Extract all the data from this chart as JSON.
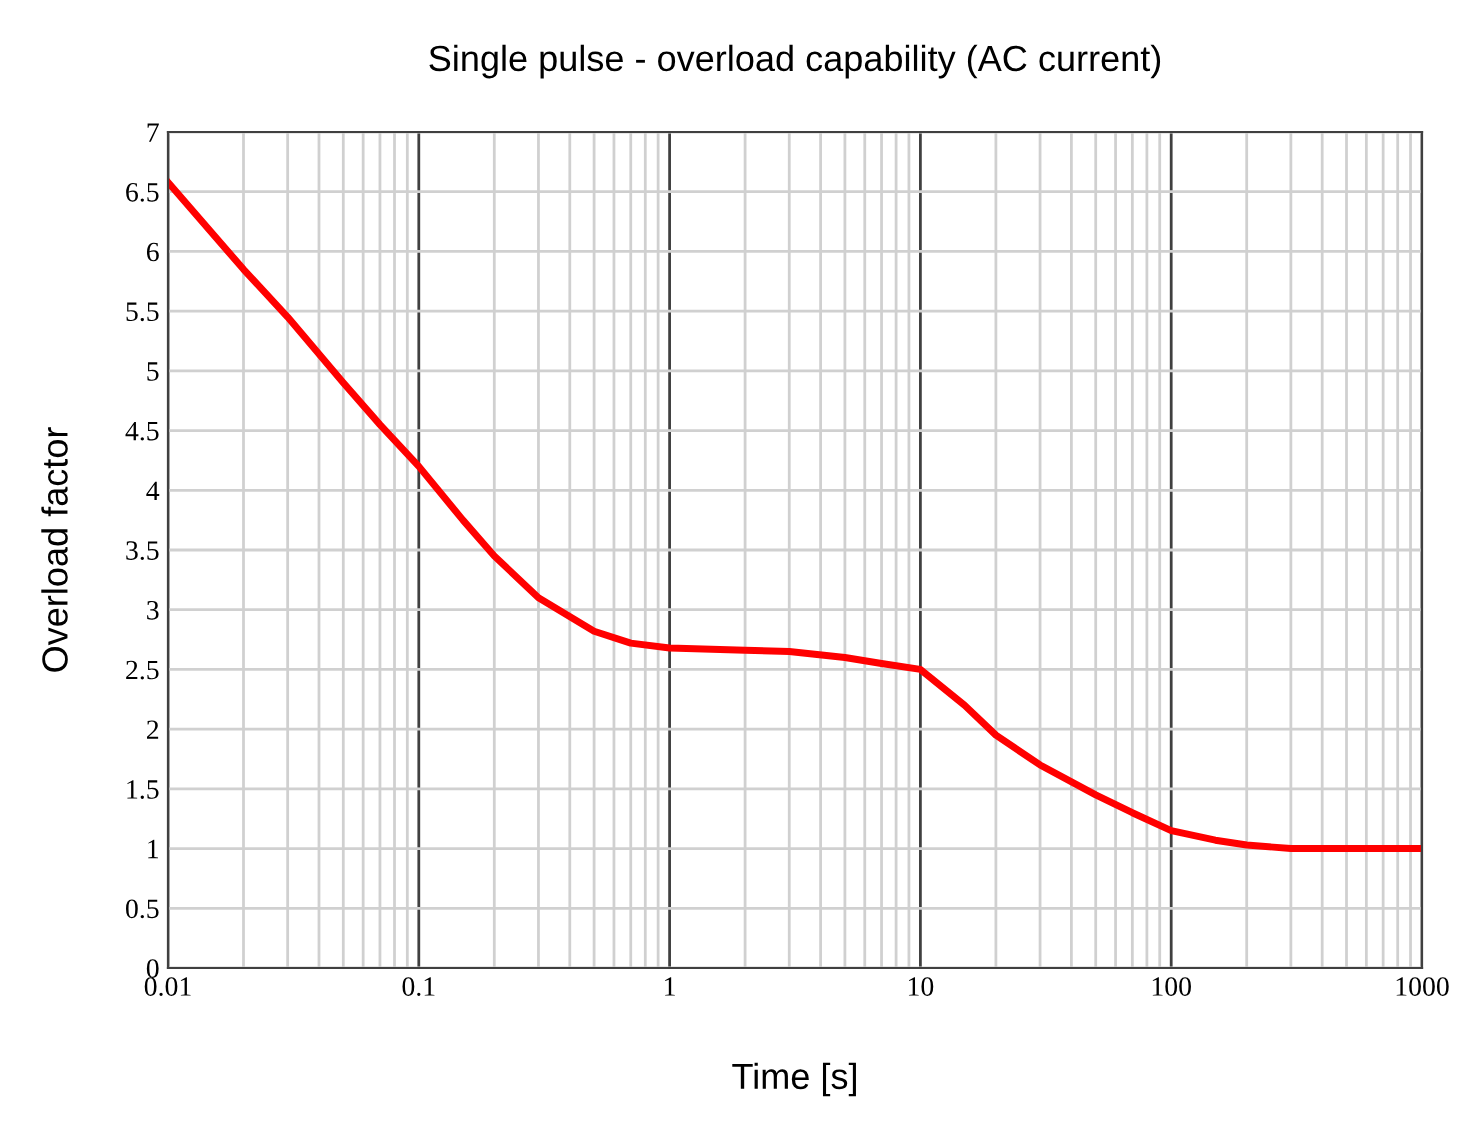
{
  "chart_data": {
    "type": "line",
    "title": "Single pulse - overload capability (AC current)",
    "xlabel": "Time [s]",
    "ylabel": "Overload factor",
    "log": "x",
    "grid": true,
    "marker": "none",
    "line_style": "solid",
    "xlim": [
      0.01,
      1000
    ],
    "xticks": [
      0.01,
      0.1,
      1,
      10,
      100,
      1000
    ],
    "ylim": [
      0,
      7
    ],
    "yticks": [
      0,
      0.5,
      1,
      1.5,
      2,
      2.5,
      3,
      3.5,
      4,
      4.5,
      5,
      5.5,
      6,
      6.5,
      7
    ],
    "x": [
      0.01,
      0.02,
      0.03,
      0.05,
      0.07,
      0.1,
      0.15,
      0.2,
      0.3,
      0.5,
      0.7,
      1,
      2,
      3,
      5,
      7,
      10,
      15,
      20,
      30,
      50,
      70,
      100,
      150,
      200,
      300,
      1000
    ],
    "series": [
      {
        "color": "#ff0000",
        "values": [
          6.58,
          5.85,
          5.45,
          4.9,
          4.55,
          4.2,
          3.75,
          3.45,
          3.1,
          2.82,
          2.72,
          2.68,
          2.66,
          2.65,
          2.6,
          2.55,
          2.5,
          2.2,
          1.95,
          1.7,
          1.45,
          1.3,
          1.15,
          1.07,
          1.03,
          1.0,
          1.0
        ]
      }
    ]
  }
}
